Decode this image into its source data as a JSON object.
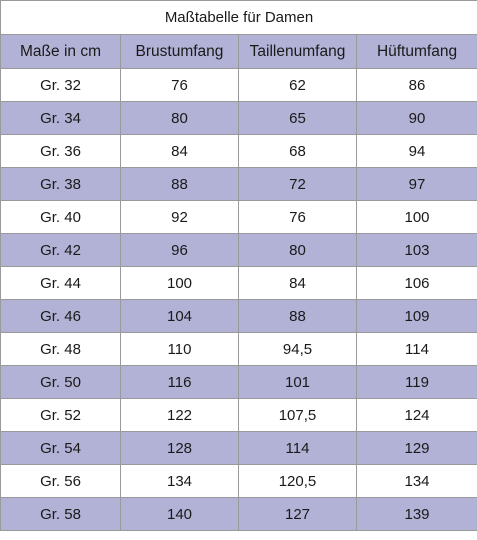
{
  "table": {
    "title": "Maßtabelle für Damen",
    "headers": [
      "Maße in cm",
      "Brustumfang",
      "Taillenumfang",
      "Hüftumfang"
    ],
    "rows": [
      [
        "Gr. 32",
        "76",
        "62",
        "86"
      ],
      [
        "Gr. 34",
        "80",
        "65",
        "90"
      ],
      [
        "Gr. 36",
        "84",
        "68",
        "94"
      ],
      [
        "Gr. 38",
        "88",
        "72",
        "97"
      ],
      [
        "Gr. 40",
        "92",
        "76",
        "100"
      ],
      [
        "Gr. 42",
        "96",
        "80",
        "103"
      ],
      [
        "Gr. 44",
        "100",
        "84",
        "106"
      ],
      [
        "Gr. 46",
        "104",
        "88",
        "109"
      ],
      [
        "Gr. 48",
        "110",
        "94,5",
        "114"
      ],
      [
        "Gr. 50",
        "116",
        "101",
        "119"
      ],
      [
        "Gr. 52",
        "122",
        "107,5",
        "124"
      ],
      [
        "Gr. 54",
        "128",
        "114",
        "129"
      ],
      [
        "Gr. 56",
        "134",
        "120,5",
        "134"
      ],
      [
        "Gr. 58",
        "140",
        "127",
        "139"
      ]
    ]
  },
  "colors": {
    "header_background": "#b2b1d6",
    "alternate_row_background": "#b2b1d6",
    "row_background": "#ffffff",
    "border": "#9a9a9a"
  }
}
